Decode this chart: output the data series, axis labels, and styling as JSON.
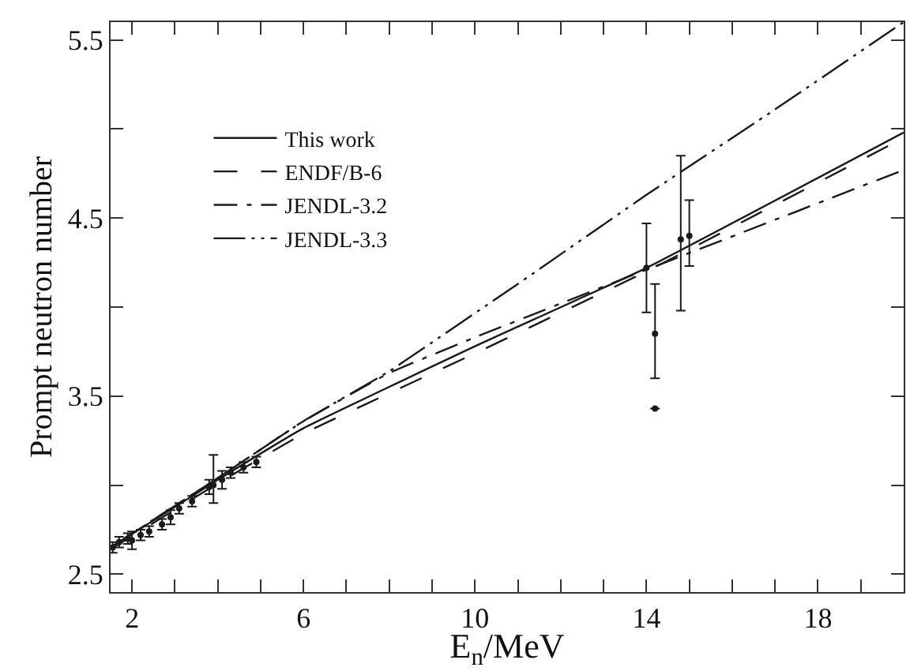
{
  "chart_data": {
    "type": "line",
    "xlabel": "E$_{n}$/MeV",
    "ylabel": "Prompt neutron number",
    "xlim": [
      1.5,
      20
    ],
    "ylim": [
      2.4,
      5.6
    ],
    "xticks": [
      2,
      {
        "value": 3,
        "label": null
      },
      {
        "value": 4,
        "label": null
      },
      {
        "value": 5,
        "label": null
      },
      6,
      {
        "value": 7,
        "label": null
      },
      {
        "value": 8,
        "label": null
      },
      {
        "value": 9,
        "label": null
      },
      10,
      {
        "value": 11,
        "label": null
      },
      {
        "value": 12,
        "label": null
      },
      {
        "value": 13,
        "label": null
      },
      14,
      {
        "value": 15,
        "label": null
      },
      {
        "value": 16,
        "label": null
      },
      {
        "value": 17,
        "label": null
      },
      18,
      {
        "value": 19,
        "label": null
      }
    ],
    "yticks": [
      2.5,
      {
        "value": 3.0,
        "label": null
      },
      3.5,
      {
        "value": 4.0,
        "label": null
      },
      4.5,
      {
        "value": 5.0,
        "label": null
      },
      5.5
    ],
    "legend": "top left",
    "series": [
      {
        "name": "This work",
        "color": "#1a1a1a",
        "line_style": "solid",
        "x": [
          1.5,
          4,
          6,
          10,
          14,
          20
        ],
        "values": [
          2.65,
          3.03,
          3.32,
          3.78,
          4.22,
          4.98
        ]
      },
      {
        "name": "ENDF/B-6",
        "color": "#1a1a1a",
        "line_style": "dashed",
        "x": [
          1.5,
          4,
          6,
          10,
          14,
          20
        ],
        "values": [
          2.64,
          3.01,
          3.29,
          3.74,
          4.2,
          4.95
        ]
      },
      {
        "name": "JENDL-3.2",
        "color": "#1a1a1a",
        "line_style": "dashdot",
        "x": [
          1.5,
          4,
          6,
          8,
          10,
          12,
          14,
          20
        ],
        "values": [
          2.65,
          3.04,
          3.36,
          3.63,
          3.83,
          4.02,
          4.21,
          4.77
        ]
      },
      {
        "name": "JENDL-3.3",
        "color": "#1a1a1a",
        "line_style": "dashdotdot",
        "x": [
          1.5,
          4,
          6,
          8,
          11,
          14,
          17,
          20
        ],
        "values": [
          2.65,
          3.04,
          3.36,
          3.64,
          4.13,
          4.63,
          5.11,
          5.6
        ]
      },
      {
        "type": "scatter",
        "marker": "circle",
        "color": "#1a1a1a",
        "x": [
          1.55,
          1.7,
          1.9,
          2.0,
          2.2,
          2.4,
          2.7,
          2.9,
          3.1,
          3.4,
          3.8,
          3.9,
          4.1,
          4.3,
          4.6,
          4.9,
          14.0,
          14.2,
          14.2,
          14.8,
          15.0
        ],
        "values": [
          2.65,
          2.68,
          2.7,
          2.69,
          2.72,
          2.74,
          2.78,
          2.82,
          2.87,
          2.91,
          2.99,
          3.0,
          3.03,
          3.07,
          3.1,
          3.13,
          4.22,
          3.85,
          3.43,
          4.38,
          4.4
        ],
        "errors": [
          0.03,
          0.03,
          0.03,
          0.05,
          0.03,
          0.03,
          0.03,
          0.04,
          0.03,
          0.03,
          0.04,
          [
            2.9,
            3.17
          ],
          0.05,
          0.03,
          0.03,
          0.03,
          0.25,
          [
            3.6,
            4.13
          ],
          null,
          [
            3.98,
            4.85
          ],
          [
            4.23,
            4.6
          ]
        ]
      }
    ]
  }
}
